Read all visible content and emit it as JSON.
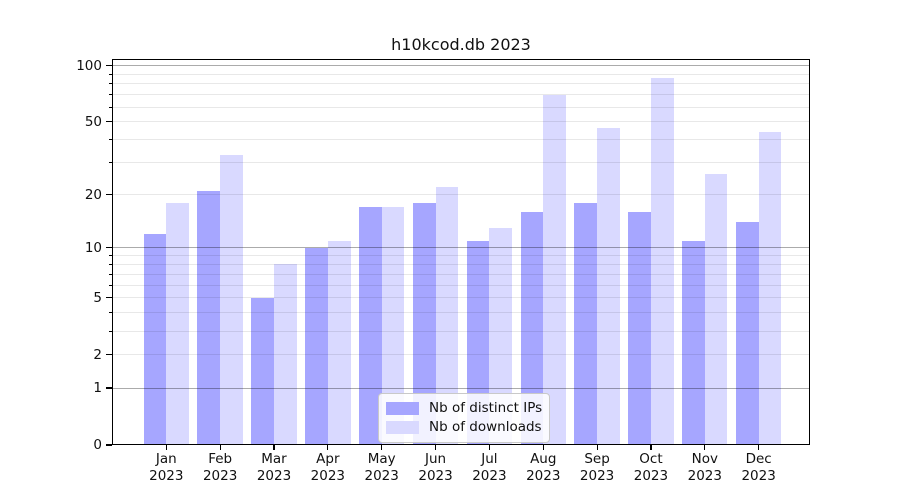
{
  "chart_data": {
    "type": "bar",
    "title": "h10kcod.db 2023",
    "year_label": "2023",
    "categories": [
      "Jan",
      "Feb",
      "Mar",
      "Apr",
      "May",
      "Jun",
      "Jul",
      "Aug",
      "Sep",
      "Oct",
      "Nov",
      "Dec"
    ],
    "series": [
      {
        "name": "Nb of distinct IPs",
        "color": "#a6a6ff",
        "values": [
          12,
          21,
          5,
          10,
          17,
          18,
          11,
          16,
          18,
          16,
          11,
          14
        ]
      },
      {
        "name": "Nb of downloads",
        "color": "#d9d9ff",
        "values": [
          18,
          33,
          8,
          11,
          17,
          22,
          13,
          70,
          46,
          86,
          26,
          44
        ]
      }
    ],
    "yscale": "log1p",
    "ylim": [
      0,
      110
    ],
    "yticks": [
      0,
      1,
      2,
      5,
      10,
      20,
      50,
      100
    ],
    "minor_grid_values": [
      2,
      3,
      4,
      5,
      6,
      7,
      8,
      9,
      20,
      30,
      40,
      50,
      60,
      70,
      80,
      90
    ],
    "major_grid_values": [
      1,
      10,
      100
    ],
    "grid": "horizontal",
    "legend_position": "lower center"
  },
  "colors": {
    "background": "#ffffff",
    "spine": "#000000",
    "major_grid": "#aaaaaa",
    "minor_grid": "#e8e8e8",
    "text": "#111111"
  }
}
